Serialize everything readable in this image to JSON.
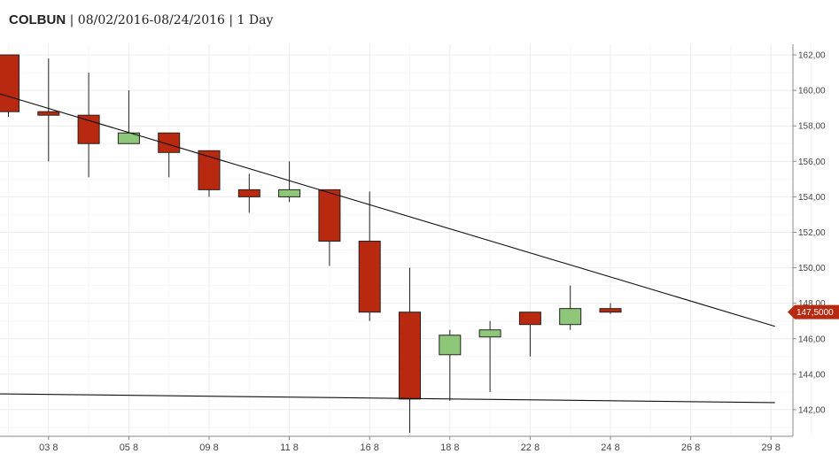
{
  "header": {
    "symbol": "COLBUN",
    "range": "08/02/2016-08/24/2016",
    "interval": "1 Day",
    "sep": " | "
  },
  "chart_data": {
    "type": "candlestick",
    "title": "",
    "grid": true,
    "ylim": [
      140.5,
      162.6
    ],
    "y_ticks": [
      142,
      144,
      146,
      148,
      150,
      152,
      154,
      156,
      158,
      160,
      162
    ],
    "y_tick_labels": [
      "142,00",
      "144,00",
      "146,00",
      "148,00",
      "150,00",
      "152,00",
      "154,00",
      "156,00",
      "158,00",
      "160,00",
      "162,00"
    ],
    "x_ticks": [
      "03 8",
      "05 8",
      "09 8",
      "11 8",
      "16 8",
      "18 8",
      "22 8",
      "24 8",
      "26 8",
      "29 8"
    ],
    "candles": [
      {
        "open": 162.0,
        "high": 162.0,
        "low": 158.5,
        "close": 158.8
      },
      {
        "open": 158.8,
        "high": 161.8,
        "low": 156.0,
        "close": 158.6
      },
      {
        "open": 158.6,
        "high": 161.0,
        "low": 155.1,
        "close": 157.0
      },
      {
        "open": 157.0,
        "high": 160.0,
        "low": 157.0,
        "close": 157.6
      },
      {
        "open": 157.6,
        "high": 157.6,
        "low": 155.1,
        "close": 156.5
      },
      {
        "open": 156.6,
        "high": 156.6,
        "low": 154.0,
        "close": 154.4
      },
      {
        "open": 154.4,
        "high": 155.3,
        "low": 153.1,
        "close": 154.0
      },
      {
        "open": 154.0,
        "high": 156.0,
        "low": 153.7,
        "close": 154.4
      },
      {
        "open": 154.4,
        "high": 154.4,
        "low": 150.1,
        "close": 151.5
      },
      {
        "open": 151.5,
        "high": 154.3,
        "low": 147.0,
        "close": 147.5
      },
      {
        "open": 147.5,
        "high": 150.0,
        "low": 140.7,
        "close": 142.6
      },
      {
        "open": 145.1,
        "high": 146.5,
        "low": 142.5,
        "close": 146.2
      },
      {
        "open": 146.1,
        "high": 147.0,
        "low": 143.0,
        "close": 146.5
      },
      {
        "open": 147.5,
        "high": 147.5,
        "low": 145.0,
        "close": 146.8
      },
      {
        "open": 146.8,
        "high": 149.0,
        "low": 146.5,
        "close": 147.7
      },
      {
        "open": 147.7,
        "high": 148.0,
        "low": 147.4,
        "close": 147.5
      }
    ],
    "trendlines": [
      {
        "from": [
          -0.5,
          160.0
        ],
        "to": [
          19.1,
          146.7
        ]
      },
      {
        "from": [
          -0.5,
          142.9
        ],
        "to": [
          19.1,
          142.4
        ]
      }
    ],
    "last_price": 147.5,
    "last_price_label": "147,5000",
    "colors": {
      "up": "#8fc77a",
      "down": "#b8290f",
      "line": "#111111",
      "grid": "#ececec",
      "label_bg": "#b8290f"
    }
  }
}
